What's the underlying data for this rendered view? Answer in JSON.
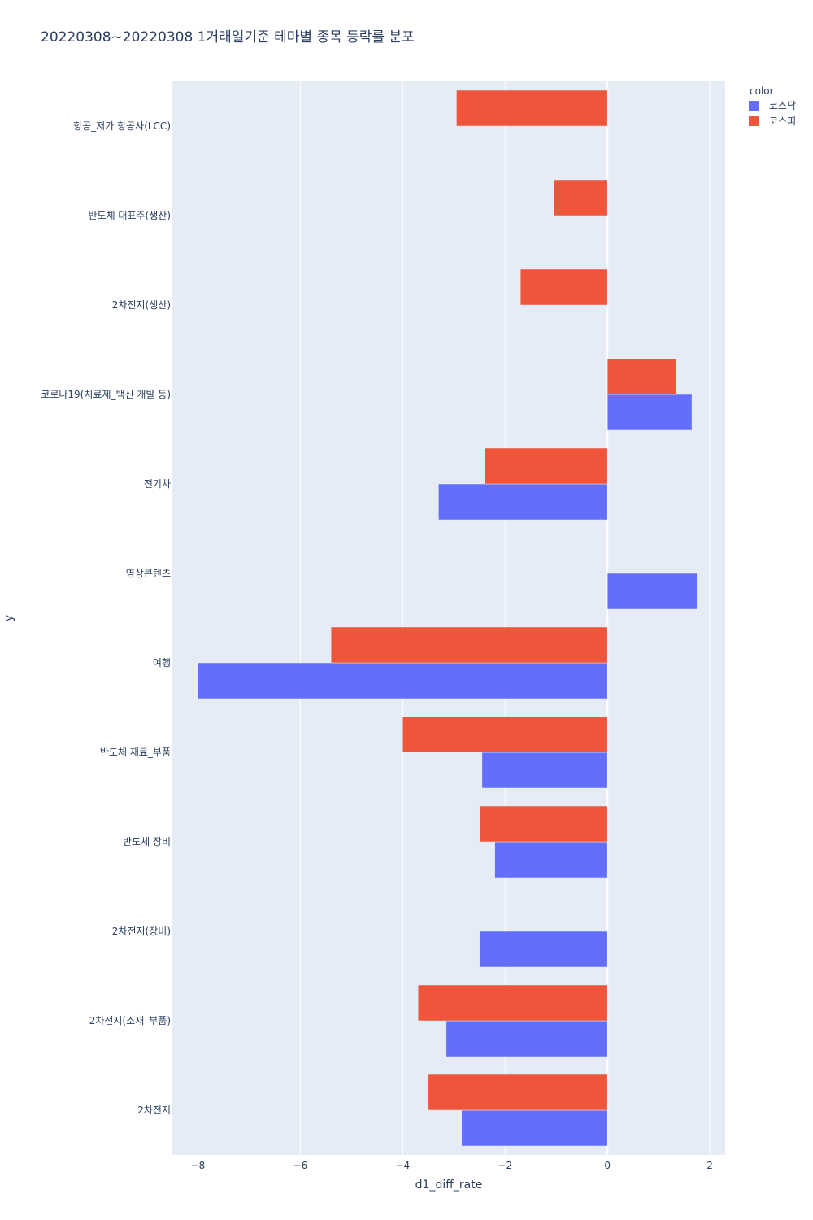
{
  "chart_data": {
    "type": "bar",
    "orientation": "horizontal",
    "title": "20220308~20220308 1거래일기준 테마별 종목 등락률 분포",
    "xlabel": "d1_diff_rate",
    "ylabel": "y",
    "xlim": [
      -8.5,
      2.3
    ],
    "xticks": [
      -8,
      -6,
      -4,
      -2,
      0,
      2
    ],
    "xtick_labels": [
      "−8",
      "−6",
      "−4",
      "−2",
      "0",
      "2"
    ],
    "grid": true,
    "legend": {
      "title": "color",
      "position": "top-right"
    },
    "categories": [
      "항공_저가 항공사(LCC)",
      "반도체 대표주(생산)",
      "2차전지(생산)",
      "코로나19(치료제_백신 개발 등)",
      "전기차",
      "영상콘텐츠",
      "여행",
      "반도체 재료_부품",
      "반도체 장비",
      "2차전지(장비)",
      "2차전지(소재_부품)",
      "2차전지"
    ],
    "series": [
      {
        "name": "코스닥",
        "color": "#636efa",
        "values": [
          null,
          null,
          null,
          1.65,
          -3.3,
          1.75,
          -8.0,
          -2.45,
          -2.2,
          -2.5,
          -3.15,
          -2.85
        ]
      },
      {
        "name": "코스피",
        "color": "#ef553b",
        "values": [
          -2.95,
          -1.05,
          -1.7,
          1.35,
          -2.4,
          null,
          -5.4,
          -4.0,
          -2.5,
          null,
          -3.7,
          -3.5
        ]
      }
    ]
  }
}
